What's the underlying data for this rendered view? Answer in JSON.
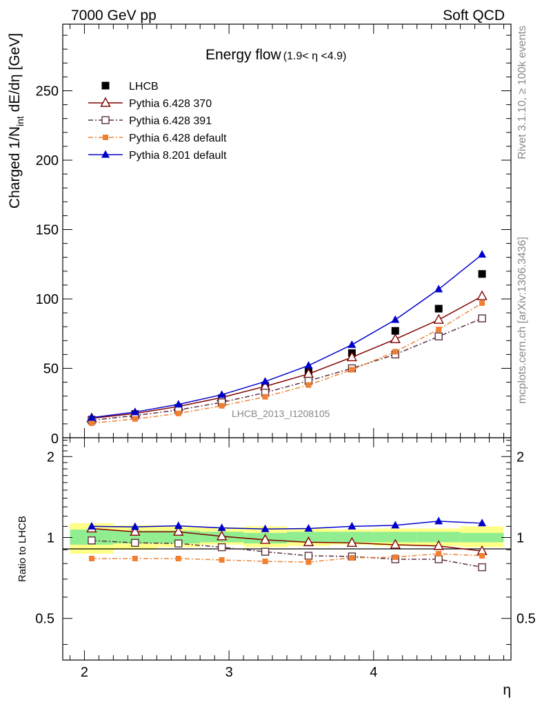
{
  "header": {
    "left": "7000 GeV pp",
    "right": "Soft QCD"
  },
  "side": {
    "rivet": "Rivet 3.1.10, ≥ 100k events",
    "mcplots": "mcplots.cern.ch [arXiv:1306.3436]"
  },
  "chart_data": [
    {
      "type": "line",
      "title": "Energy flow",
      "title_range": "(1.9< η <4.9)",
      "ylabel_main": "Charged 1/N",
      "ylabel_sub": "int",
      "ylabel_tail": " dE/dη [GeV]",
      "xlim": [
        1.85,
        4.95
      ],
      "ylim": [
        0,
        298
      ],
      "y_ticks": [
        "50",
        "100",
        "150",
        "200",
        "250"
      ],
      "y_zero_label": "0",
      "legend_position": "top-left",
      "watermark": "LHCB_2013_I1208105",
      "x": [
        2.05,
        2.35,
        2.65,
        2.95,
        3.25,
        3.55,
        3.85,
        4.15,
        4.45,
        4.75
      ],
      "series": [
        {
          "name": "LHCB",
          "values": [
            13,
            17,
            21.5,
            28.5,
            37.5,
            48,
            61,
            77,
            93,
            118
          ],
          "color": "#000000",
          "marker": "square-filled",
          "line": "none"
        },
        {
          "name": "Pythia 6.428 370",
          "values": [
            14,
            17.5,
            22.5,
            29,
            37,
            46,
            58,
            71,
            85,
            102
          ],
          "color": "#800000",
          "marker": "triangle-open",
          "line": "solid"
        },
        {
          "name": "Pythia 6.428 391",
          "values": [
            12.5,
            16,
            20,
            25.5,
            32.5,
            41,
            50,
            60,
            73,
            86
          ],
          "color": "#5a2d3a",
          "marker": "square-open",
          "line": "dashdot"
        },
        {
          "name": "Pythia 6.428 default",
          "values": [
            10.5,
            13.5,
            17.5,
            23,
            29.5,
            38,
            49,
            62,
            78,
            97
          ],
          "color": "#f08030",
          "marker": "square-filled-small",
          "line": "dashdot"
        },
        {
          "name": "Pythia 8.201 default",
          "values": [
            14.5,
            18.5,
            24,
            31,
            40.5,
            52,
            67,
            85,
            107,
            132
          ],
          "color": "#0000cc",
          "marker": "triangle-filled",
          "line": "solid"
        }
      ]
    },
    {
      "type": "line",
      "ylabel": "Ratio to LHCB",
      "xlabel": "η",
      "scale": "log",
      "xlim": [
        1.85,
        4.95
      ],
      "ylim": [
        0.35,
        2.35
      ],
      "y_ticks": [
        "0.5",
        "1",
        "2"
      ],
      "x_ticks": [
        "2",
        "3",
        "4"
      ],
      "x": [
        2.05,
        2.35,
        2.65,
        2.95,
        3.25,
        3.55,
        3.85,
        4.15,
        4.45,
        4.75
      ],
      "bands": {
        "bins": [
          [
            1.9,
            2.2
          ],
          [
            2.2,
            2.5
          ],
          [
            2.5,
            2.8
          ],
          [
            2.8,
            3.1
          ],
          [
            3.1,
            3.4
          ],
          [
            3.4,
            3.7
          ],
          [
            3.7,
            4.0
          ],
          [
            4.0,
            4.3
          ],
          [
            4.3,
            4.6
          ],
          [
            4.6,
            4.9
          ]
        ],
        "stat": [
          [
            0.94,
            1.07
          ],
          [
            0.95,
            1.06
          ],
          [
            0.95,
            1.06
          ],
          [
            0.96,
            1.05
          ],
          [
            0.95,
            1.04
          ],
          [
            0.96,
            1.05
          ],
          [
            0.96,
            1.05
          ],
          [
            0.96,
            1.05
          ],
          [
            0.96,
            1.05
          ],
          [
            0.96,
            1.04
          ]
        ],
        "total": [
          [
            0.87,
            1.13
          ],
          [
            0.9,
            1.11
          ],
          [
            0.92,
            1.1
          ],
          [
            0.94,
            1.09
          ],
          [
            0.92,
            1.1
          ],
          [
            0.93,
            1.08
          ],
          [
            0.94,
            1.07
          ],
          [
            0.93,
            1.08
          ],
          [
            0.93,
            1.08
          ],
          [
            0.92,
            1.1
          ]
        ],
        "stat_color": "#90ee90",
        "total_color": "#ffff88"
      },
      "series": [
        {
          "name": "Pythia 6.428 370",
          "values": [
            1.08,
            1.05,
            1.05,
            1.01,
            0.98,
            0.96,
            0.955,
            0.94,
            0.93,
            0.89
          ],
          "color": "#800000",
          "marker": "triangle-open",
          "line": "solid"
        },
        {
          "name": "Pythia 6.428 391",
          "values": [
            0.975,
            0.955,
            0.95,
            0.92,
            0.885,
            0.855,
            0.85,
            0.83,
            0.83,
            0.775
          ],
          "color": "#5a2d3a",
          "marker": "square-open",
          "line": "dashdot"
        },
        {
          "name": "Pythia 6.428 default",
          "values": [
            0.835,
            0.835,
            0.835,
            0.825,
            0.815,
            0.81,
            0.84,
            0.845,
            0.87,
            0.855
          ],
          "color": "#f08030",
          "marker": "square-filled-small",
          "line": "dashdot"
        },
        {
          "name": "Pythia 8.201 default",
          "values": [
            1.1,
            1.095,
            1.105,
            1.085,
            1.075,
            1.08,
            1.1,
            1.11,
            1.15,
            1.13
          ],
          "color": "#0000cc",
          "marker": "triangle-filled",
          "line": "solid"
        }
      ]
    }
  ]
}
